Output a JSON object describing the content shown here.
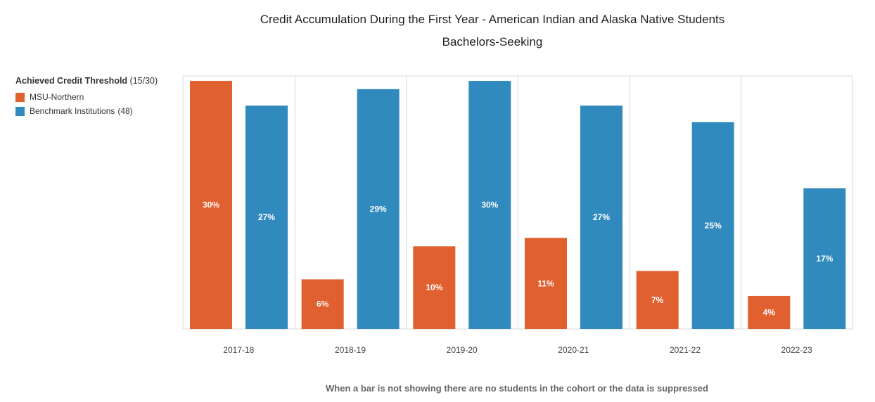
{
  "title": "Credit Accumulation During the First Year - American Indian and Alaska Native Students",
  "subtitle": "Bachelors-Seeking",
  "legend": {
    "title": "Achieved Credit Threshold",
    "title_suffix": "(15/30)",
    "placement": "top-left",
    "items": [
      {
        "label": "MSU-Northern",
        "suffix": ""
      },
      {
        "label": "Benchmark Institutions",
        "suffix": "(48)"
      }
    ]
  },
  "footnote": "When a bar is not showing there are no students in the cohort or the data is suppressed",
  "colors": {
    "series1": "#E06030",
    "series2": "#318ABD",
    "grid": "#d9d9d9"
  },
  "chart_data": {
    "type": "bar",
    "categories": [
      "2017-18",
      "2018-19",
      "2019-20",
      "2020-21",
      "2021-22",
      "2022-23"
    ],
    "series": [
      {
        "name": "MSU-Northern",
        "values": [
          30,
          6,
          10,
          11,
          7,
          4
        ],
        "labels": [
          "30%",
          "6%",
          "10%",
          "11%",
          "7%",
          "4%"
        ]
      },
      {
        "name": "Benchmark Institutions",
        "values": [
          27,
          29,
          30,
          27,
          25,
          17
        ],
        "labels": [
          "27%",
          "29%",
          "30%",
          "27%",
          "25%",
          "17%"
        ]
      }
    ],
    "ylim": [
      0,
      30.6
    ],
    "grid": "vertical separators only",
    "xlabel": "",
    "ylabel": ""
  }
}
